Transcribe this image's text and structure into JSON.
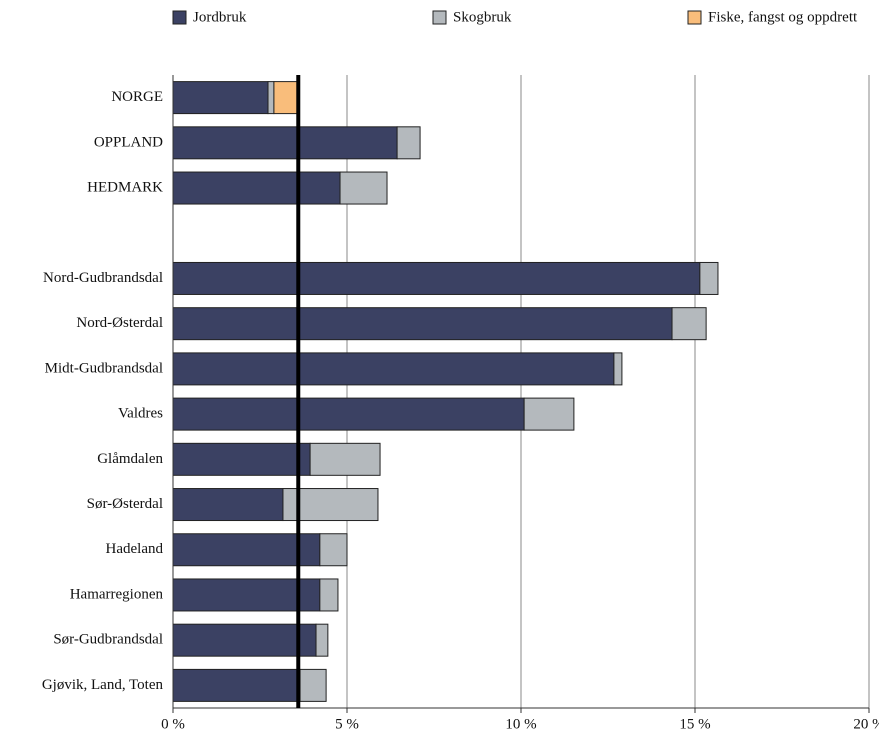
{
  "chart_data": {
    "type": "stacked_barh",
    "categories": [
      "NORGE",
      "OPPLAND",
      "HEDMARK",
      null,
      "Nord-Gudbrandsdal",
      "Nord-Østerdal",
      "Midt-Gudbrandsdal",
      "Valdres",
      "Glåmdalen",
      "Sør-Østerdal",
      "Hadeland",
      "Hamarregionen",
      "Sør-Gudbrandsdal",
      "Gjøvik, Land, Toten"
    ],
    "series": [
      {
        "name": "Jordbruk",
        "color": "#3b4163",
        "values": [
          2.73,
          6.44,
          4.8,
          null,
          15.14,
          14.34,
          12.67,
          10.09,
          3.94,
          3.16,
          4.22,
          4.22,
          4.11,
          3.65
        ]
      },
      {
        "name": "Skogbruk",
        "color": "#b4b9bd",
        "values": [
          0.17,
          0.66,
          1.35,
          null,
          0.52,
          0.98,
          0.23,
          1.43,
          2.01,
          2.73,
          0.78,
          0.52,
          0.34,
          0.75
        ]
      },
      {
        "name": "Fiske, fangst og oppdrett",
        "color": "#f9bd7b",
        "values": [
          0.69,
          0,
          0,
          null,
          0,
          0,
          0,
          0,
          0,
          0,
          0,
          0,
          0,
          0
        ]
      }
    ],
    "xlim": [
      0,
      20
    ],
    "xticks": [
      {
        "value": 0,
        "label": "0 %"
      },
      {
        "value": 5,
        "label": "5 %"
      },
      {
        "value": 10,
        "label": "10 %"
      },
      {
        "value": 15,
        "label": "15 %"
      },
      {
        "value": 20,
        "label": "20 %"
      }
    ],
    "grid": true,
    "legend": "top",
    "reference_line": 3.6
  }
}
